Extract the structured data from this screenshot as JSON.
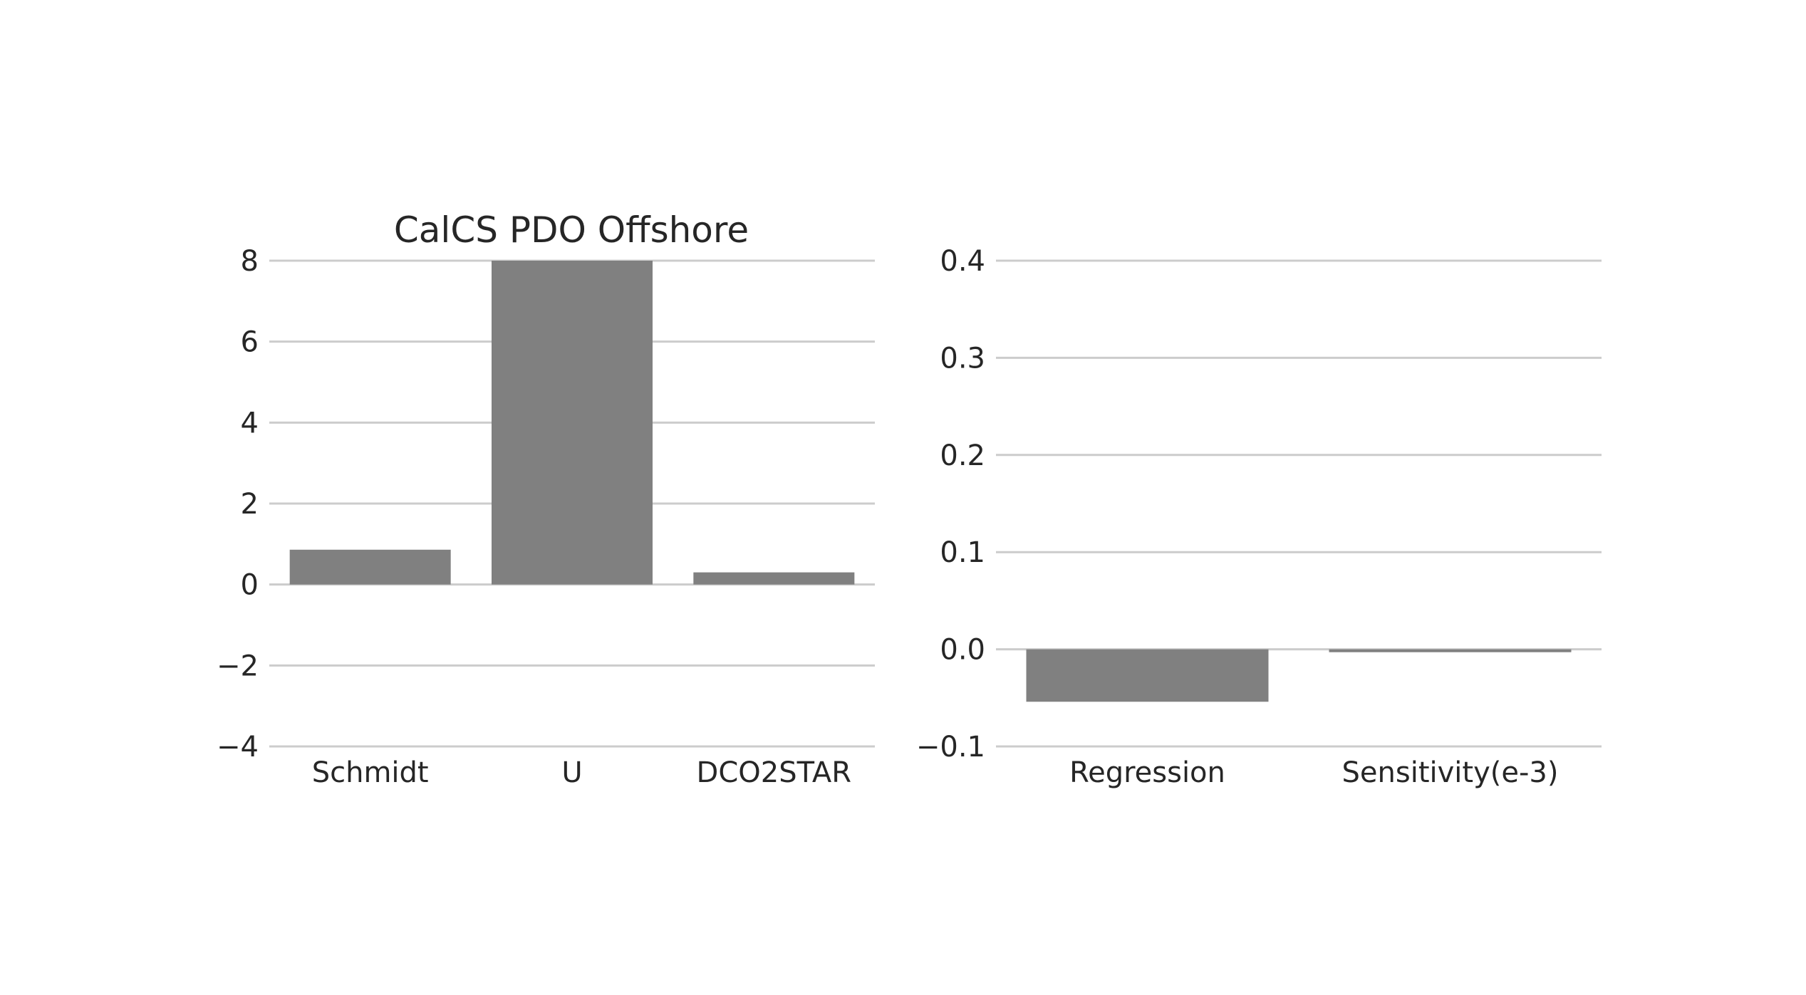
{
  "chart_data": [
    {
      "type": "bar",
      "title": "CalCS PDO Offshore",
      "categories": [
        "Schmidt",
        "U",
        "DCO2STAR"
      ],
      "values": [
        0.86,
        8.0,
        0.3
      ],
      "ylim": [
        -4,
        8
      ],
      "yticks": [
        8,
        6,
        4,
        2,
        0,
        -2,
        -4
      ],
      "ytick_labels": [
        "8",
        "6",
        "4",
        "2",
        "0",
        "−2",
        "−4"
      ],
      "grid": true,
      "bar_color": "#808080"
    },
    {
      "type": "bar",
      "title": "",
      "categories": [
        "Regression",
        "Sensitivity(e-3)"
      ],
      "values": [
        -0.054,
        -0.003
      ],
      "ylim": [
        -0.1,
        0.4
      ],
      "yticks": [
        0.4,
        0.3,
        0.2,
        0.1,
        0.0,
        -0.1
      ],
      "ytick_labels": [
        "0.4",
        "0.3",
        "0.2",
        "0.1",
        "0.0",
        "−0.1"
      ],
      "grid": true,
      "bar_color": "#808080"
    }
  ]
}
